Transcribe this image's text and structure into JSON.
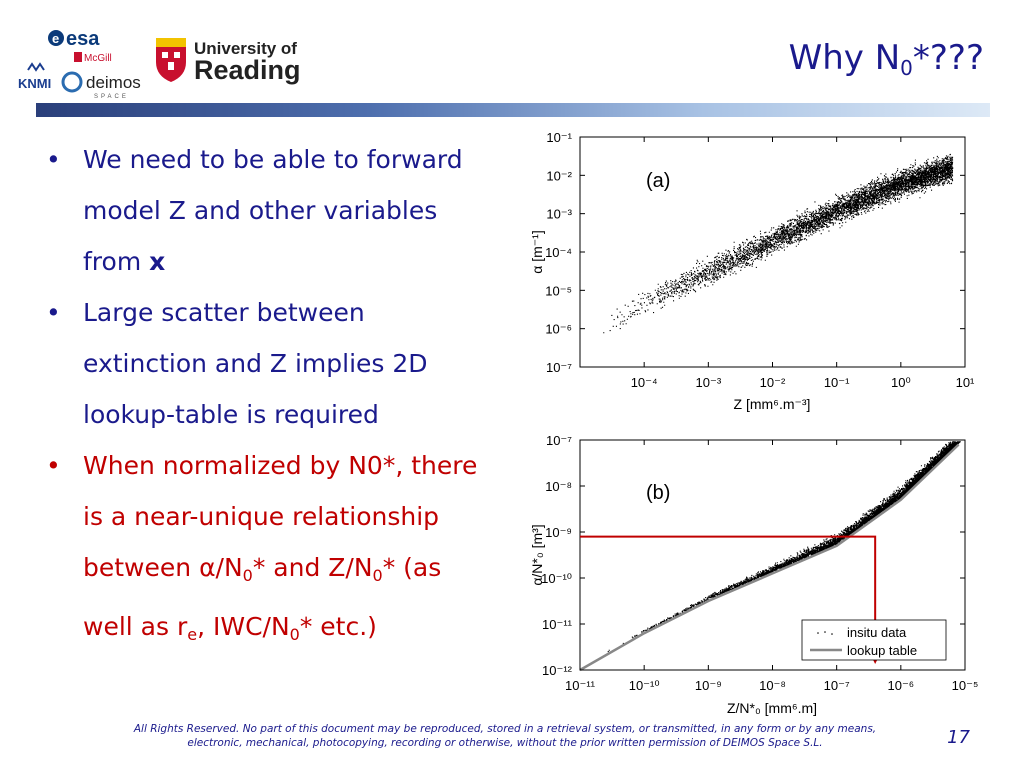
{
  "logos": {
    "esa": "esa",
    "mcgill": "McGill",
    "knmi": "KNMI",
    "deimos": "deimos",
    "deimos_sub": "SPACE",
    "uni_line1": "University of",
    "uni_line2": "Reading"
  },
  "header": {
    "title_prefix": "Why N",
    "title_sub": "0",
    "title_suffix": "*???"
  },
  "bullets": {
    "b1_text": "We need to be able to forward model Z and other variables from ",
    "b1_bold": "x",
    "b2_text": "Large scatter between extinction and Z implies 2D lookup-table is required",
    "b3_p1": "When normalized by N0*, there is a near-unique relationship between ",
    "b3_alpha": "α",
    "b3_p2": "/N",
    "b3_sub1": "0",
    "b3_p3": "* and Z/N",
    "b3_sub2": "0",
    "b3_p4": "* (as well as r",
    "b3_sub3": "e",
    "b3_p5": ", IWC/N",
    "b3_sub4": "0",
    "b3_p6": "* etc.)"
  },
  "footer": {
    "text": "All Rights Reserved. No part of this document may be reproduced, stored in a retrieval system, or transmitted, in any form or by any means, electronic, mechanical, photocopying, recording or otherwise, without the prior written permission of DEIMOS Space S.L.",
    "page": "17"
  },
  "colors": {
    "title": "#1a1a8c",
    "red_text": "#c00000",
    "arrow": "#c00000",
    "lookup": "#888888"
  },
  "chart_data": [
    {
      "type": "scatter",
      "panel_label": "(a)",
      "xlabel": "Z [mm⁶.m⁻³]",
      "ylabel": "α [m⁻¹]",
      "xscale": "log",
      "yscale": "log",
      "xlim_exp": [
        -5,
        1
      ],
      "ylim_exp": [
        -7,
        -1
      ],
      "xticks": [
        "10⁻⁴",
        "10⁻³",
        "10⁻²",
        "10⁻¹",
        "10⁰",
        "10¹"
      ],
      "yticks": [
        "10⁻¹",
        "10⁻²",
        "10⁻³",
        "10⁻⁴",
        "10⁻⁵",
        "10⁻⁶",
        "10⁻⁷"
      ],
      "series": [
        {
          "points_log10": [
            [
              -4.7,
              -6.1
            ],
            [
              -4,
              -5.3
            ],
            [
              -3,
              -4.5
            ],
            [
              -2,
              -3.7
            ],
            [
              -1,
              -2.9
            ],
            [
              0,
              -2.2
            ],
            [
              0.8,
              -1.8
            ]
          ]
        }
      ]
    },
    {
      "type": "scatter",
      "panel_label": "(b)",
      "xlabel": "Z/N*₀ [mm⁶.m]",
      "ylabel": "α/N*₀ [m³]",
      "xscale": "log",
      "yscale": "log",
      "xlim_exp": [
        -11,
        -5
      ],
      "ylim_exp": [
        -12,
        -7
      ],
      "xticks": [
        "10⁻¹¹",
        "10⁻¹⁰",
        "10⁻⁹",
        "10⁻⁸",
        "10⁻⁷",
        "10⁻⁶",
        "10⁻⁵"
      ],
      "yticks": [
        "10⁻⁷",
        "10⁻⁸",
        "10⁻⁹",
        "10⁻¹⁰",
        "10⁻¹¹",
        "10⁻¹²"
      ],
      "legend": [
        "insitu data",
        "lookup table"
      ],
      "legend_position": "bottom-right",
      "lookup_log10": [
        [
          -11,
          -12
        ],
        [
          -10,
          -11.2
        ],
        [
          -9,
          -10.5
        ],
        [
          -8,
          -9.9
        ],
        [
          -7,
          -9.3
        ],
        [
          -6,
          -8.3
        ],
        [
          -5.1,
          -7.1
        ]
      ],
      "highlight_log10": {
        "x": -6.4,
        "y": -9.1
      }
    }
  ]
}
